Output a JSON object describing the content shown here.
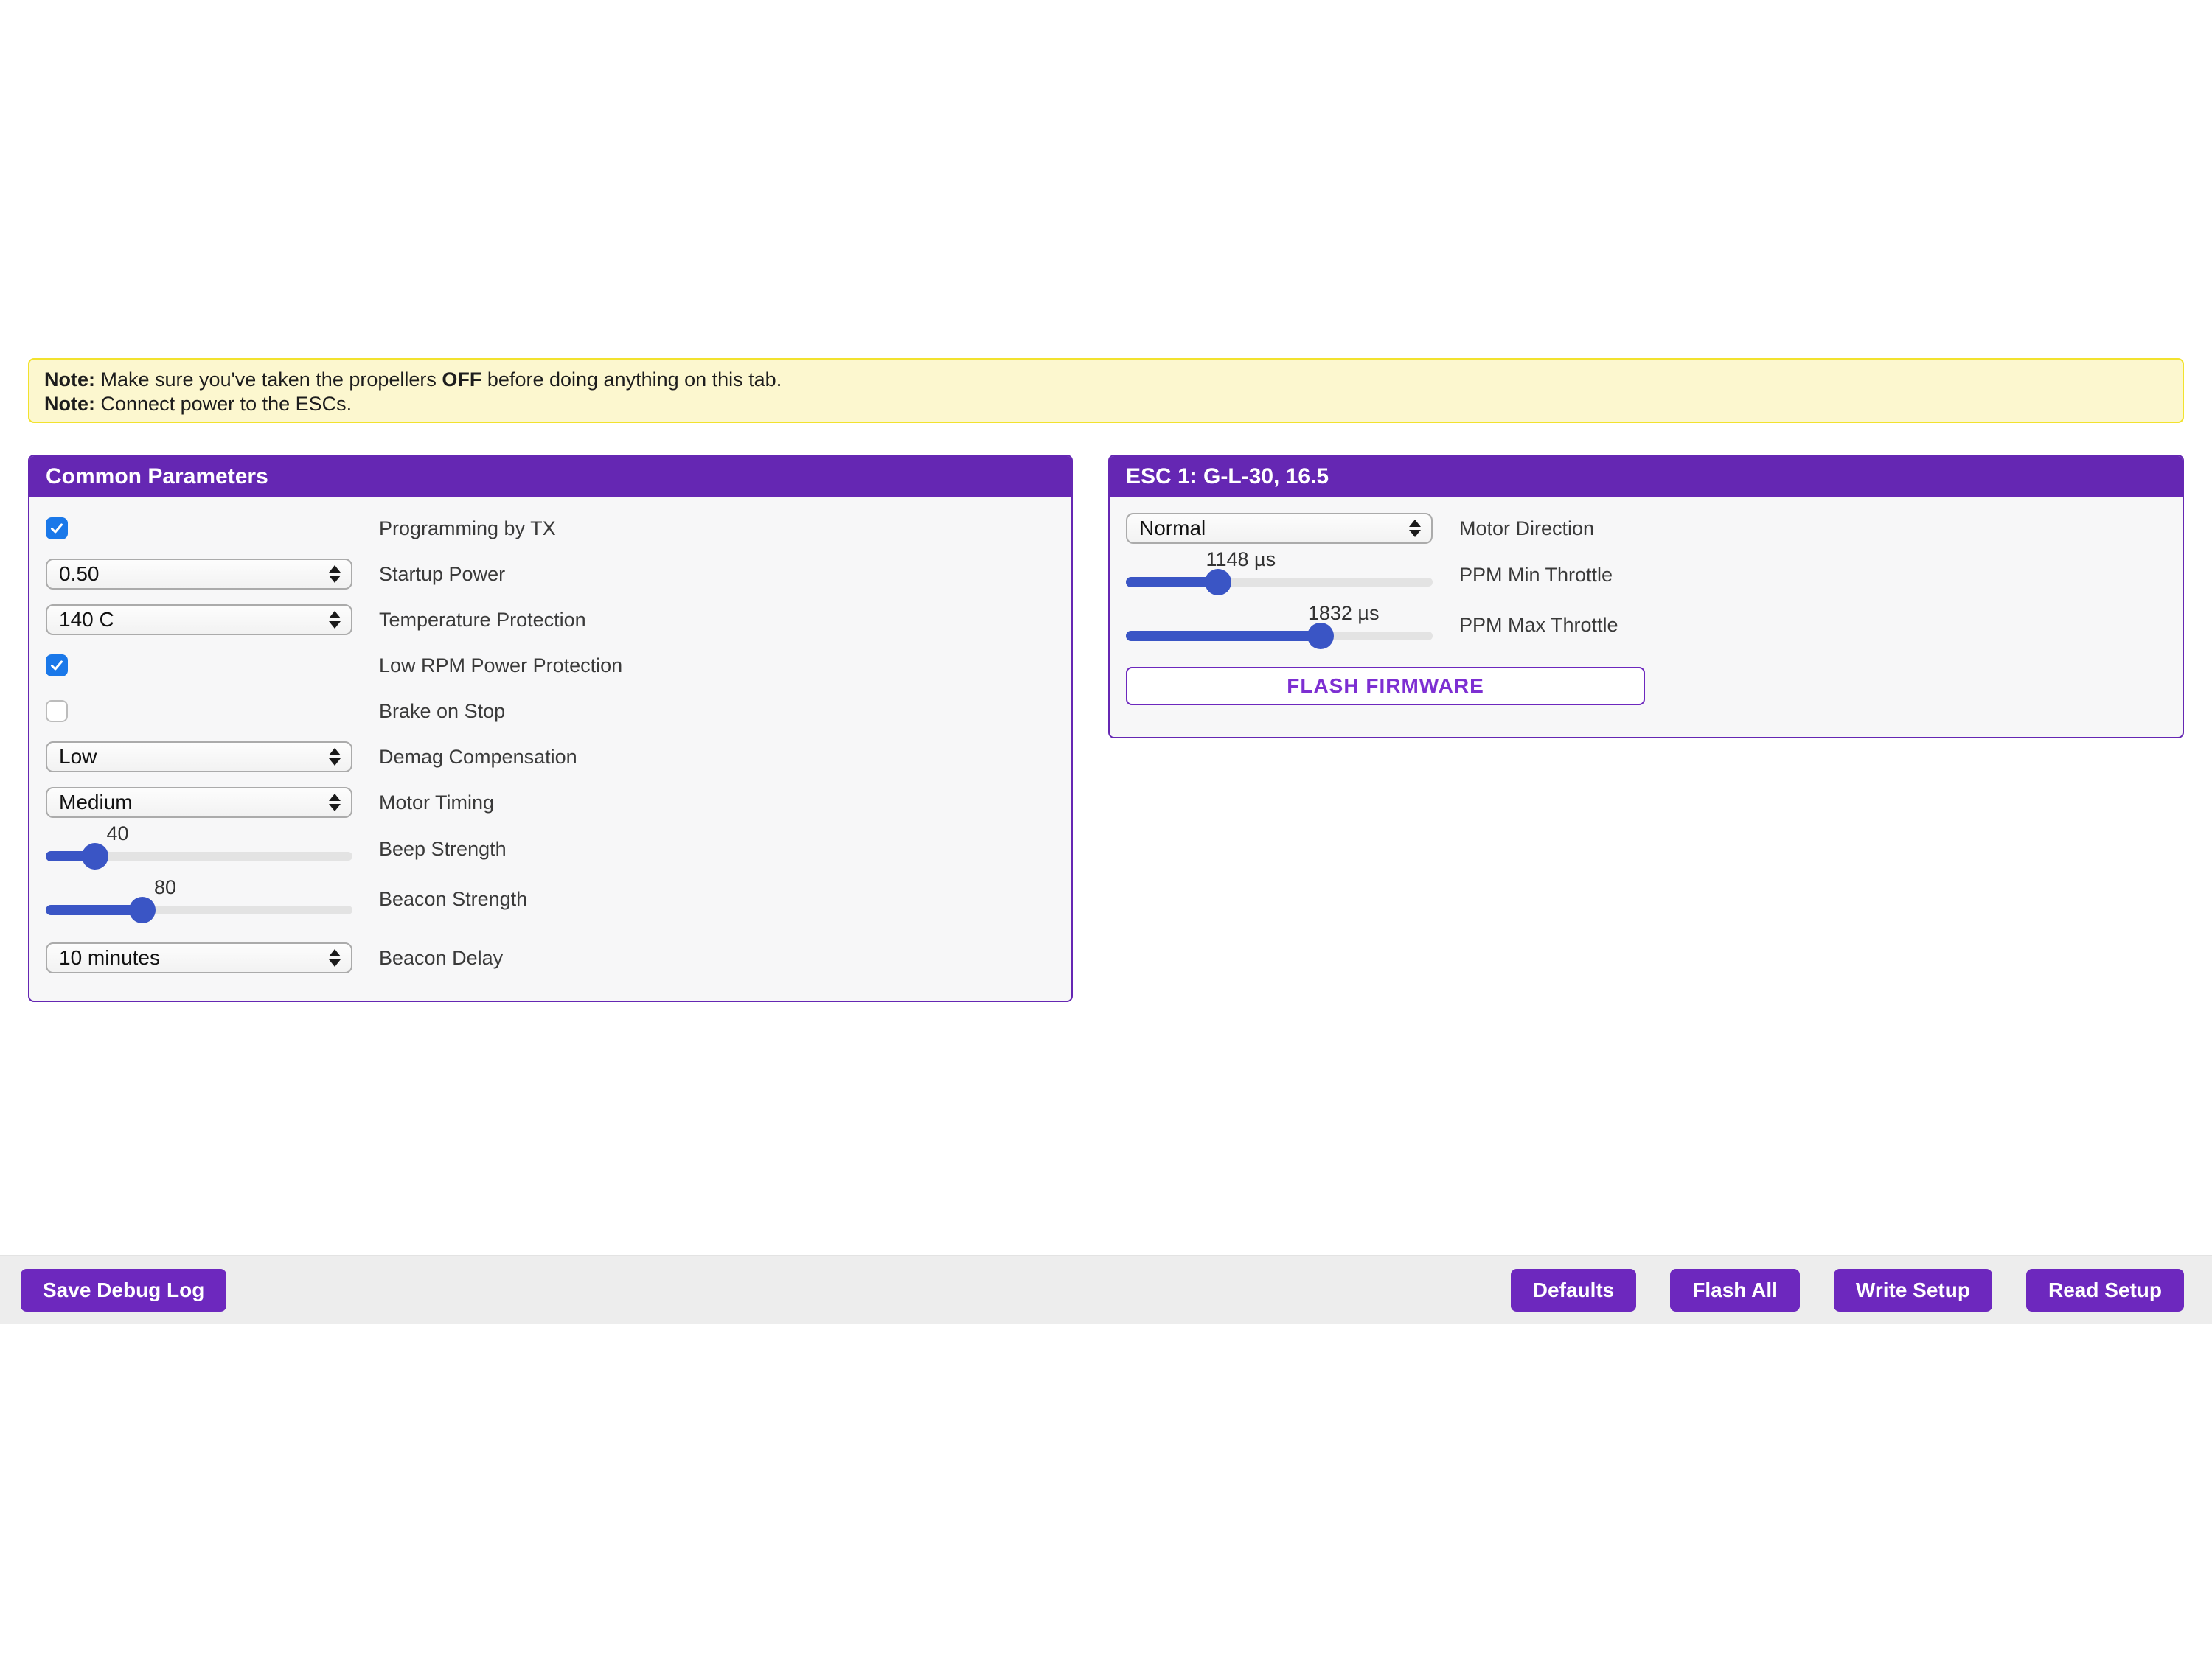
{
  "banner": {
    "line1": {
      "label": "Note:",
      "before": " Make sure you've taken the propellers ",
      "emphasis": "OFF",
      "after": " before doing anything on this tab."
    },
    "line2": {
      "label": "Note:",
      "text": " Connect power to the ESCs."
    }
  },
  "common": {
    "title": "Common Parameters",
    "rows": [
      {
        "type": "checkbox",
        "checked": true,
        "label": "Programming by TX"
      },
      {
        "type": "select",
        "value": "0.50",
        "label": "Startup Power"
      },
      {
        "type": "select",
        "value": "140 C",
        "label": "Temperature Protection"
      },
      {
        "type": "checkbox",
        "checked": true,
        "label": "Low RPM Power Protection"
      },
      {
        "type": "checkbox",
        "checked": false,
        "label": "Brake on Stop"
      },
      {
        "type": "select",
        "value": "Low",
        "label": "Demag Compensation"
      },
      {
        "type": "select",
        "value": "Medium",
        "label": "Motor Timing"
      },
      {
        "type": "slider",
        "value_label": "40",
        "percent": 16,
        "label": "Beep Strength"
      },
      {
        "type": "slider",
        "value_label": "80",
        "percent": 31.5,
        "label": "Beacon Strength"
      },
      {
        "type": "select",
        "value": "10 minutes",
        "label": "Beacon Delay"
      }
    ]
  },
  "esc1": {
    "title": "ESC 1: G-L-30, 16.5",
    "rows": [
      {
        "type": "select",
        "value": "Normal",
        "label": "Motor Direction"
      },
      {
        "type": "slider",
        "value_label": "1148 µs",
        "percent": 30,
        "label": "PPM Min Throttle"
      },
      {
        "type": "slider",
        "value_label": "1832 µs",
        "percent": 63.5,
        "label": "PPM Max Throttle"
      }
    ],
    "flash_button_label": "FLASH FIRMWARE"
  },
  "footer": {
    "save_debug_label": "Save Debug Log",
    "right_buttons": [
      {
        "label": "Defaults"
      },
      {
        "label": "Flash All"
      },
      {
        "label": "Write Setup"
      },
      {
        "label": "Read Setup"
      }
    ]
  },
  "colors": {
    "accent_purple": "#6527b3",
    "button_purple": "#6d28be",
    "checkbox_blue": "#1a78e9",
    "slider_blue": "#3a55c5",
    "banner_bg": "#fcf7cf",
    "banner_border": "#f2e22e"
  }
}
